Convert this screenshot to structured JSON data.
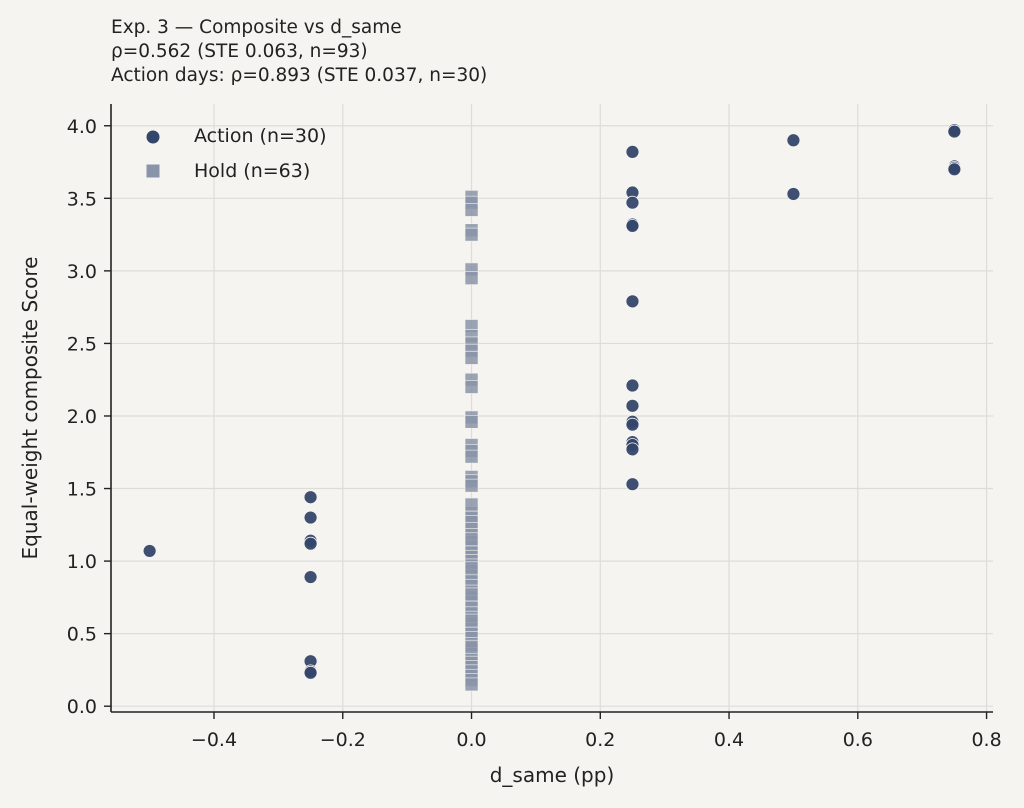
{
  "chart_data": {
    "type": "scatter",
    "title": "Exp. 3 — Composite vs d_same",
    "subtitle_lines": [
      "ρ=0.562 (STE 0.063, n=93)",
      "Action days: ρ=0.893 (STE 0.037, n=30)"
    ],
    "xlabel": "d_same (pp)",
    "ylabel": "Equal-weight composite Score",
    "xlim": [
      -0.56,
      0.81
    ],
    "ylim": [
      -0.04,
      4.15
    ],
    "xticks": [
      -0.4,
      -0.2,
      0.0,
      0.2,
      0.4,
      0.6,
      0.8
    ],
    "xtick_labels": [
      "−0.4",
      "−0.2",
      "0.0",
      "0.2",
      "0.4",
      "0.6",
      "0.8"
    ],
    "yticks": [
      0.0,
      0.5,
      1.0,
      1.5,
      2.0,
      2.5,
      3.0,
      3.5,
      4.0
    ],
    "ytick_labels": [
      "0.0",
      "0.5",
      "1.0",
      "1.5",
      "2.0",
      "2.5",
      "3.0",
      "3.5",
      "4.0"
    ],
    "grid": true,
    "legend_position": "top-left",
    "series": [
      {
        "name": "Action (n=30)",
        "marker": "circle",
        "color": "#34466a",
        "points": [
          [
            -0.5,
            1.07
          ],
          [
            -0.25,
            1.44
          ],
          [
            -0.25,
            1.3
          ],
          [
            -0.25,
            1.14
          ],
          [
            -0.25,
            1.12
          ],
          [
            -0.25,
            0.89
          ],
          [
            -0.25,
            0.31
          ],
          [
            -0.25,
            0.24
          ],
          [
            -0.25,
            0.23
          ],
          [
            0.25,
            3.82
          ],
          [
            0.25,
            3.54
          ],
          [
            0.25,
            3.47
          ],
          [
            0.25,
            3.32
          ],
          [
            0.25,
            3.31
          ],
          [
            0.25,
            2.79
          ],
          [
            0.25,
            2.21
          ],
          [
            0.25,
            2.07
          ],
          [
            0.25,
            1.96
          ],
          [
            0.25,
            1.94
          ],
          [
            0.25,
            1.82
          ],
          [
            0.25,
            1.8
          ],
          [
            0.25,
            1.77
          ],
          [
            0.25,
            1.53
          ],
          [
            0.5,
            3.9
          ],
          [
            0.5,
            3.53
          ],
          [
            0.75,
            3.97
          ],
          [
            0.75,
            3.96
          ],
          [
            0.75,
            3.72
          ],
          [
            0.75,
            3.71
          ],
          [
            0.75,
            3.7
          ]
        ]
      },
      {
        "name": "Hold (n=63)",
        "marker": "square",
        "color": "#8a94a8",
        "points": [
          [
            0,
            3.51
          ],
          [
            0,
            3.47
          ],
          [
            0,
            3.42
          ],
          [
            0,
            3.28
          ],
          [
            0,
            3.25
          ],
          [
            0,
            3.01
          ],
          [
            0,
            2.95
          ],
          [
            0,
            2.62
          ],
          [
            0,
            2.55
          ],
          [
            0,
            2.5
          ],
          [
            0,
            2.45
          ],
          [
            0,
            2.4
          ],
          [
            0,
            2.25
          ],
          [
            0,
            2.2
          ],
          [
            0,
            1.99
          ],
          [
            0,
            1.96
          ],
          [
            0,
            1.8
          ],
          [
            0,
            1.76
          ],
          [
            0,
            1.72
          ],
          [
            0,
            1.58
          ],
          [
            0,
            1.55
          ],
          [
            0,
            1.52
          ],
          [
            0,
            1.33
          ],
          [
            0,
            1.3
          ],
          [
            0,
            1.27
          ],
          [
            0,
            1.22
          ],
          [
            0,
            1.18
          ],
          [
            0,
            1.13
          ],
          [
            0,
            1.1
          ],
          [
            0,
            1.06
          ],
          [
            0,
            1.03
          ],
          [
            0,
            1.0
          ],
          [
            0,
            0.97
          ],
          [
            0,
            0.93
          ],
          [
            0,
            0.9
          ],
          [
            0,
            0.87
          ],
          [
            0,
            0.83
          ],
          [
            0,
            0.79
          ],
          [
            0,
            0.75
          ],
          [
            0,
            0.72
          ],
          [
            0,
            0.68
          ],
          [
            0,
            0.64
          ],
          [
            0,
            0.61
          ],
          [
            0,
            0.57
          ],
          [
            0,
            0.53
          ],
          [
            0,
            0.5
          ],
          [
            0,
            0.47
          ],
          [
            0,
            0.43
          ],
          [
            0,
            0.4
          ],
          [
            0,
            0.36
          ],
          [
            0,
            0.33
          ],
          [
            0,
            0.3
          ],
          [
            0,
            0.27
          ],
          [
            0,
            0.24
          ],
          [
            0,
            0.21
          ],
          [
            0,
            0.18
          ],
          [
            0,
            0.15
          ],
          [
            0,
            1.15
          ],
          [
            0,
            0.95
          ],
          [
            0,
            0.77
          ],
          [
            0,
            0.59
          ],
          [
            0,
            0.41
          ],
          [
            0,
            1.39
          ]
        ]
      }
    ]
  }
}
